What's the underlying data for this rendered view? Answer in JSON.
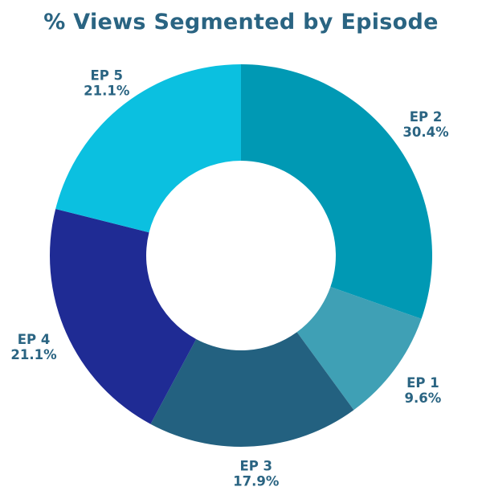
{
  "chart_data": {
    "type": "pie",
    "variant": "donut",
    "title": "% Views Segmented by Episode",
    "slices": [
      {
        "label": "EP 2",
        "value": 30.4,
        "value_label": "30.4%",
        "color": "#0099b4"
      },
      {
        "label": "EP 1",
        "value": 9.6,
        "value_label": "9.6%",
        "color": "#3fa0b5"
      },
      {
        "label": "EP 3",
        "value": 17.9,
        "value_label": "17.9%",
        "color": "#236180"
      },
      {
        "label": "EP 4",
        "value": 21.1,
        "value_label": "21.1%",
        "color": "#1f2b94"
      },
      {
        "label": "EP 5",
        "value": 21.1,
        "value_label": "21.1%",
        "color": "#0bc0e0"
      }
    ],
    "legend": "none"
  }
}
